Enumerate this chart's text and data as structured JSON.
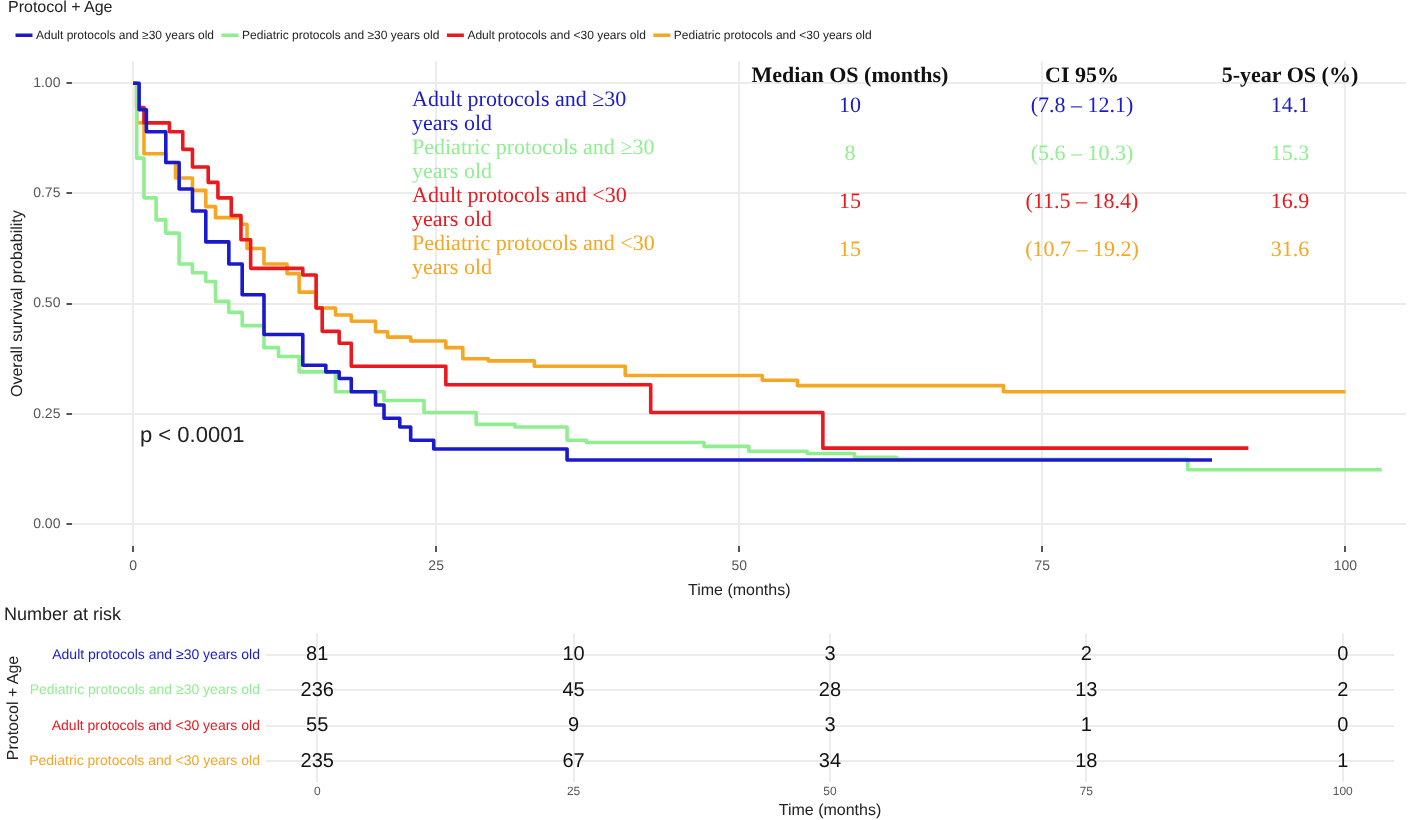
{
  "chart_data": [
    {
      "type": "step",
      "legend_title": "Protocol + Age",
      "legend": "top",
      "xlabel": "Time (months)",
      "ylabel": "Overall survival probability",
      "xlim": [
        -5,
        105
      ],
      "xticks": [
        0,
        25,
        50,
        75,
        100
      ],
      "ylim": [
        -0.05,
        1.05
      ],
      "yticks": [
        {
          "value": 0,
          "label": "0.00"
        },
        {
          "value": 0.25,
          "label": "0.25"
        },
        {
          "value": 0.5,
          "label": "0.50"
        },
        {
          "value": 0.75,
          "label": "0.75"
        },
        {
          "value": 1,
          "label": "1.00"
        }
      ],
      "grid": true,
      "annotations": [
        "p < 0.0001",
        "Median OS (months)",
        "CI 95%",
        "5-year OS (%)",
        "10",
        "(7.8 – 12.1)",
        "14.1",
        "8",
        "(5.6 – 10.3)",
        "15.3",
        "15",
        "(11.5 – 18.4)",
        "16.9",
        "15",
        "(10.7 – 19.2)",
        "31.6"
      ],
      "series": [
        {
          "name": "Adult protocols and ≥30 years old",
          "color": "#1a1acc",
          "x": [
            0,
            0.5,
            1.1,
            2.7,
            3.8,
            4.9,
            6,
            7.9,
            9,
            10.8,
            14,
            15.9,
            17,
            18,
            20,
            20.7,
            22,
            22.9,
            24.8,
            35.8,
            89
          ],
          "values": [
            1,
            0.94,
            0.89,
            0.82,
            0.76,
            0.71,
            0.64,
            0.59,
            0.52,
            0.43,
            0.36,
            0.345,
            0.33,
            0.3,
            0.27,
            0.24,
            0.22,
            0.19,
            0.17,
            0.145,
            0.145
          ]
        },
        {
          "name": "Pediatric protocols and ≥30 years old",
          "color": "#90ee90",
          "x": [
            0,
            0.3,
            0.9,
            1.9,
            2.7,
            3.8,
            4.9,
            6,
            6.8,
            7.9,
            9,
            10.8,
            12,
            13.7,
            16.7,
            20.7,
            24,
            28.3,
            31.5,
            35.8,
            37.4,
            47.1,
            50.8,
            55.6,
            59.5,
            63,
            87,
            103
          ],
          "values": [
            1,
            0.83,
            0.74,
            0.69,
            0.66,
            0.59,
            0.57,
            0.55,
            0.505,
            0.48,
            0.45,
            0.4,
            0.38,
            0.345,
            0.3,
            0.28,
            0.253,
            0.226,
            0.22,
            0.19,
            0.185,
            0.176,
            0.165,
            0.16,
            0.151,
            0.147,
            0.123,
            0.123
          ]
        },
        {
          "name": "Adult protocols and <30 years old",
          "color": "#e8191f",
          "x": [
            0,
            0.3,
            0.9,
            3,
            4.1,
            4.9,
            6.2,
            7,
            8.1,
            8.9,
            9.7,
            14,
            15.1,
            15.6,
            17,
            18,
            25.8,
            42.7,
            56.9,
            92
          ],
          "values": [
            1,
            0.945,
            0.91,
            0.89,
            0.85,
            0.81,
            0.775,
            0.74,
            0.7,
            0.645,
            0.58,
            0.565,
            0.49,
            0.437,
            0.41,
            0.358,
            0.316,
            0.253,
            0.172,
            0.172
          ]
        },
        {
          "name": "Pediatric protocols and <30 years old",
          "color": "#f5a623",
          "x": [
            0,
            0.3,
            0.9,
            2.7,
            3.5,
            4.9,
            6,
            6.8,
            8.9,
            9.4,
            10.8,
            12.7,
            13.7,
            15.1,
            16.7,
            18,
            20,
            21,
            22.9,
            25.8,
            27.2,
            29.3,
            33.1,
            40.6,
            51.9,
            54.8,
            71.8,
            100
          ],
          "values": [
            1,
            0.91,
            0.84,
            0.82,
            0.785,
            0.757,
            0.72,
            0.695,
            0.68,
            0.625,
            0.59,
            0.568,
            0.526,
            0.49,
            0.474,
            0.46,
            0.436,
            0.424,
            0.415,
            0.4,
            0.375,
            0.37,
            0.358,
            0.337,
            0.326,
            0.314,
            0.3,
            0.3
          ]
        }
      ]
    },
    {
      "type": "heatmap",
      "title": "Number at risk",
      "xlabel": "Time (months)",
      "ylabel": "Protocol + Age",
      "categories": [
        "0",
        "25",
        "50",
        "75",
        "100"
      ],
      "grid": true,
      "y_categories": [
        "Adult protocols and ≥30 years old",
        "Pediatric protocols and ≥30 years old",
        "Adult protocols and <30 years old",
        "Pediatric protocols and <30 years old"
      ],
      "cells": [
        [
          81,
          10,
          3,
          2,
          0
        ],
        [
          236,
          45,
          28,
          13,
          2
        ],
        [
          55,
          9,
          3,
          1,
          0
        ],
        [
          235,
          67,
          34,
          18,
          1
        ]
      ],
      "data_labels": true
    }
  ]
}
